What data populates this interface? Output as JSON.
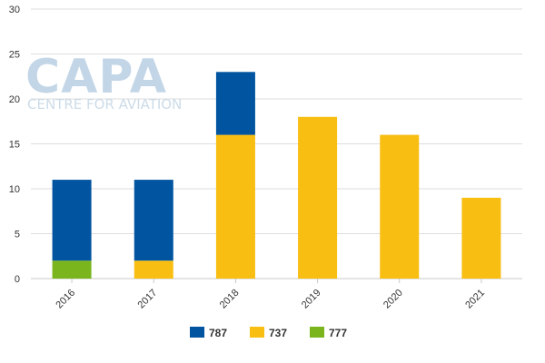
{
  "watermark": {
    "logo": "CAPA",
    "subtitle": "CENTRE FOR AVIATION"
  },
  "chart_data": {
    "type": "bar",
    "stacked": true,
    "categories": [
      "2016",
      "2017",
      "2018",
      "2019",
      "2020",
      "2021"
    ],
    "series": [
      {
        "name": "777",
        "color": "#7ab51d",
        "values": [
          2,
          0,
          0,
          0,
          0,
          0
        ]
      },
      {
        "name": "737",
        "color": "#f8be11",
        "values": [
          0,
          2,
          16,
          18,
          16,
          9
        ]
      },
      {
        "name": "787",
        "color": "#0054a0",
        "values": [
          9,
          9,
          7,
          0,
          0,
          0
        ]
      }
    ],
    "legend_order": [
      "787",
      "737",
      "777"
    ],
    "ylim": [
      0,
      30
    ],
    "yticks": [
      0,
      5,
      10,
      15,
      20,
      25,
      30
    ],
    "grid": true,
    "legend_position": "bottom",
    "title": "",
    "xlabel": "",
    "ylabel": ""
  }
}
